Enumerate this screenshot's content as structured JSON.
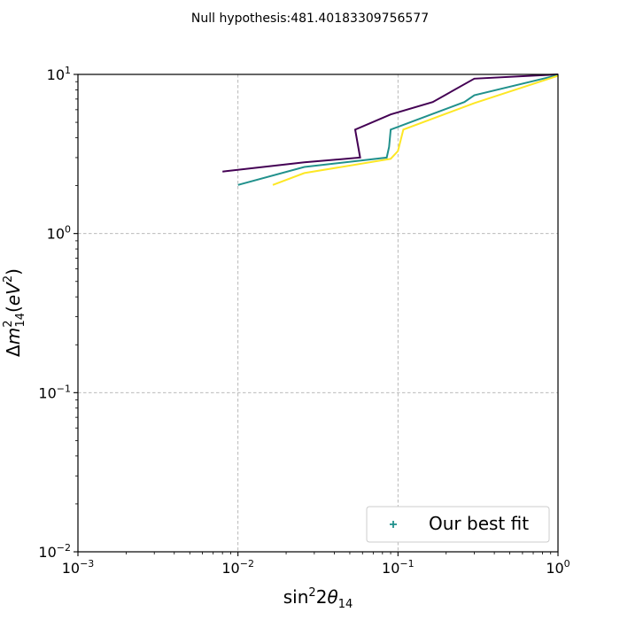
{
  "chart_data": {
    "type": "line",
    "title": "Null hypothesis:481.40183309756577",
    "x_scale": "log",
    "y_scale": "log",
    "xlim": [
      0.001,
      1
    ],
    "ylim": [
      0.01,
      10
    ],
    "x_ticks": [
      {
        "value": 0.001,
        "base": "10",
        "exp": "−3"
      },
      {
        "value": 0.01,
        "base": "10",
        "exp": "−2"
      },
      {
        "value": 0.1,
        "base": "10",
        "exp": "−1"
      },
      {
        "value": 1,
        "base": "10",
        "exp": "0"
      }
    ],
    "y_ticks": [
      {
        "value": 0.01,
        "base": "10",
        "exp": "−2"
      },
      {
        "value": 0.1,
        "base": "10",
        "exp": "−1"
      },
      {
        "value": 1,
        "base": "10",
        "exp": "0"
      },
      {
        "value": 10,
        "base": "10",
        "exp": "1"
      }
    ],
    "grid": true,
    "legend_position": "lower-right",
    "legend": [
      {
        "label": "Our best fit",
        "marker": "+",
        "color": "#21918c"
      }
    ],
    "series": [
      {
        "color": "#440154",
        "points": [
          [
            0.008,
            2.45
          ],
          [
            0.026,
            2.8
          ],
          [
            0.058,
            3.0
          ],
          [
            0.054,
            4.5
          ],
          [
            0.09,
            5.6
          ],
          [
            0.165,
            6.7
          ],
          [
            0.3,
            9.4
          ],
          [
            1.0,
            10.0
          ]
        ]
      },
      {
        "color": "#21918c",
        "points": [
          [
            0.01,
            2.02
          ],
          [
            0.026,
            2.62
          ],
          [
            0.085,
            3.0
          ],
          [
            0.088,
            3.5
          ],
          [
            0.09,
            4.5
          ],
          [
            0.26,
            6.7
          ],
          [
            0.3,
            7.4
          ],
          [
            1.0,
            9.9
          ]
        ]
      },
      {
        "color": "#fde725",
        "points": [
          [
            0.0165,
            2.02
          ],
          [
            0.026,
            2.4
          ],
          [
            0.09,
            2.95
          ],
          [
            0.1,
            3.3
          ],
          [
            0.108,
            4.5
          ],
          [
            0.3,
            6.6
          ],
          [
            1.0,
            9.8
          ]
        ]
      }
    ]
  }
}
